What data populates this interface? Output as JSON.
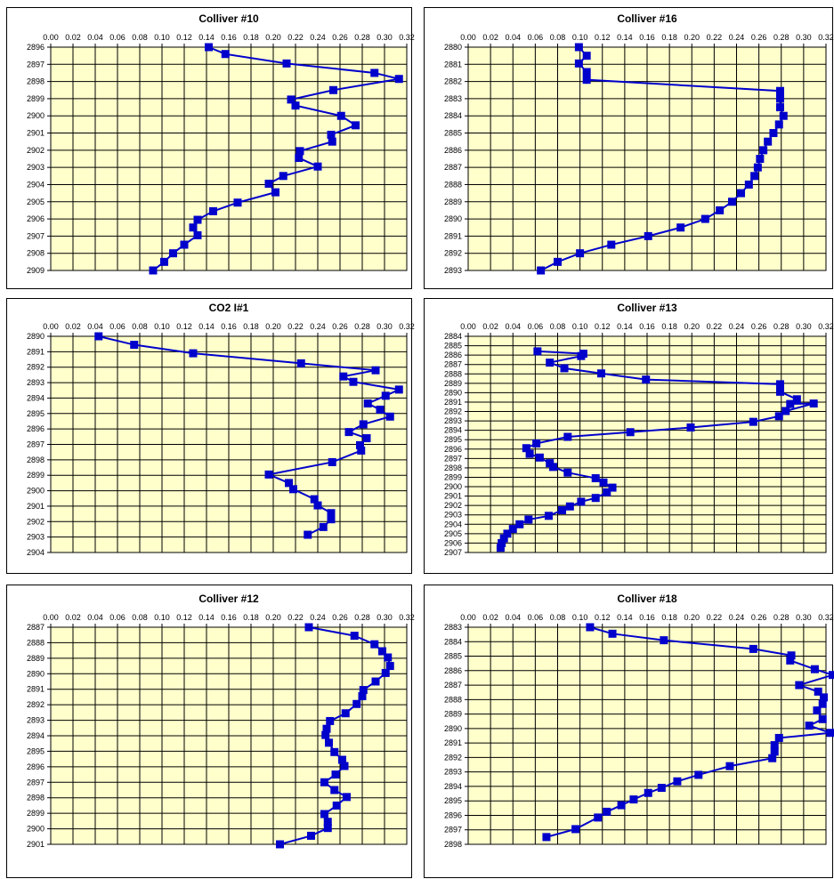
{
  "colors": {
    "plot_bg": "#ffffcc",
    "grid": "#000000",
    "series": "#0000cc",
    "panel_border": "#000000"
  },
  "chart_data": [
    {
      "type": "line",
      "title": "Colliver #10",
      "xlim": [
        0,
        0.32
      ],
      "xticks": [
        "0.00",
        "0.02",
        "0.04",
        "0.06",
        "0.08",
        "0.10",
        "0.12",
        "0.14",
        "0.16",
        "0.18",
        "0.20",
        "0.22",
        "0.24",
        "0.26",
        "0.28",
        "0.30",
        "0.32"
      ],
      "yticks": [
        "2896",
        "2897",
        "2898",
        "2899",
        "2900",
        "2901",
        "2902",
        "2903",
        "2904",
        "2905",
        "2906",
        "2907",
        "2908",
        "2909"
      ],
      "ylim": [
        2896,
        2909
      ],
      "y_reversed": true,
      "x_axis_position": "top",
      "grid": true,
      "series": [
        {
          "marker": "square",
          "x": [
            0.142,
            0.157,
            0.212,
            0.291,
            0.313,
            0.254,
            0.216,
            0.22,
            0.261,
            0.274,
            0.252,
            0.253,
            0.224,
            0.223,
            0.24,
            0.209,
            0.196,
            0.202,
            0.168,
            0.146,
            0.132,
            0.128,
            0.132,
            0.12,
            0.11,
            0.102,
            0.092
          ],
          "y": [
            2896.0,
            2896.4,
            2896.95,
            2897.5,
            2897.85,
            2898.5,
            2899.05,
            2899.4,
            2900.0,
            2900.55,
            2901.1,
            2901.5,
            2902.05,
            2902.45,
            2902.95,
            2903.5,
            2903.95,
            2904.45,
            2905.05,
            2905.55,
            2906.05,
            2906.5,
            2906.95,
            2907.5,
            2908.0,
            2908.5,
            2909.0
          ]
        }
      ]
    },
    {
      "type": "line",
      "title": "Colliver #16",
      "xlim": [
        0,
        0.32
      ],
      "xticks": [
        "0.00",
        "0.02",
        "0.04",
        "0.06",
        "0.08",
        "0.10",
        "0.12",
        "0.14",
        "0.16",
        "0.18",
        "0.20",
        "0.22",
        "0.24",
        "0.26",
        "0.28",
        "0.30",
        "0.32"
      ],
      "yticks": [
        "2880",
        "2881",
        "2882",
        "2883",
        "2884",
        "2885",
        "2886",
        "2887",
        "2888",
        "2889",
        "2890",
        "2891",
        "2892",
        "2893"
      ],
      "ylim": [
        2880,
        2893
      ],
      "y_reversed": true,
      "x_axis_position": "top",
      "grid": true,
      "series": [
        {
          "marker": "square",
          "x": [
            0.099,
            0.106,
            0.099,
            0.106,
            0.106,
            0.279,
            0.279,
            0.279,
            0.282,
            0.278,
            0.273,
            0.268,
            0.264,
            0.261,
            0.259,
            0.256,
            0.251,
            0.244,
            0.236,
            0.225,
            0.212,
            0.19,
            0.161,
            0.128,
            0.1,
            0.08,
            0.065
          ],
          "y": [
            2880.0,
            2880.5,
            2880.95,
            2881.45,
            2881.9,
            2882.55,
            2883.0,
            2883.5,
            2884.0,
            2884.5,
            2885.0,
            2885.5,
            2886.0,
            2886.5,
            2887.0,
            2887.5,
            2888.0,
            2888.5,
            2889.0,
            2889.5,
            2890.0,
            2890.5,
            2891.0,
            2891.5,
            2892.0,
            2892.5,
            2893.0
          ]
        }
      ]
    },
    {
      "type": "line",
      "title": "CO2 I#1",
      "xlim": [
        0,
        0.32
      ],
      "xticks": [
        "0.00",
        "0.02",
        "0.04",
        "0.06",
        "0.08",
        "0.10",
        "0.12",
        "0.14",
        "0.16",
        "0.18",
        "0.20",
        "0.22",
        "0.24",
        "0.26",
        "0.28",
        "0.30",
        "0.32"
      ],
      "yticks": [
        "2890",
        "2891",
        "2892",
        "2893",
        "2894",
        "2895",
        "2896",
        "2897",
        "2898",
        "2899",
        "2900",
        "2901",
        "2902",
        "2903",
        "2904"
      ],
      "ylim": [
        2890,
        2904
      ],
      "y_reversed": true,
      "x_axis_position": "top",
      "grid": true,
      "series": [
        {
          "marker": "square",
          "x": [
            0.043,
            0.075,
            0.128,
            0.225,
            0.292,
            0.263,
            0.272,
            0.313,
            0.301,
            0.285,
            0.296,
            0.305,
            0.281,
            0.268,
            0.284,
            0.278,
            0.279,
            0.253,
            0.196,
            0.214,
            0.218,
            0.237,
            0.24,
            0.252,
            0.252,
            0.245,
            0.231
          ],
          "y": [
            2890.0,
            2890.55,
            2891.1,
            2891.75,
            2892.2,
            2892.6,
            2892.95,
            2893.45,
            2893.85,
            2894.35,
            2894.75,
            2895.2,
            2895.7,
            2896.2,
            2896.6,
            2897.05,
            2897.4,
            2898.15,
            2898.95,
            2899.5,
            2899.9,
            2900.55,
            2900.95,
            2901.45,
            2901.85,
            2902.35,
            2902.85
          ]
        }
      ]
    },
    {
      "type": "line",
      "title": "Colliver #13",
      "xlim": [
        0,
        0.32
      ],
      "xticks": [
        "0.00",
        "0.02",
        "0.04",
        "0.06",
        "0.08",
        "0.10",
        "0.12",
        "0.14",
        "0.16",
        "0.18",
        "0.20",
        "0.22",
        "0.24",
        "0.26",
        "0.28",
        "0.30",
        "0.32"
      ],
      "yticks": [
        "2884",
        "2885",
        "2886",
        "2887",
        "2888",
        "2889",
        "2890",
        "2891",
        "2892",
        "2893",
        "2894",
        "2895",
        "2896",
        "2897",
        "2898",
        "2899",
        "2900",
        "2901",
        "2902",
        "2903",
        "2904",
        "2905",
        "2906",
        "2907"
      ],
      "ylim": [
        2884,
        2907
      ],
      "y_reversed": true,
      "x_axis_position": "top",
      "grid": true,
      "series": [
        {
          "marker": "square",
          "x": [
            0.062,
            0.103,
            0.101,
            0.073,
            0.086,
            0.119,
            0.159,
            0.279,
            0.279,
            0.294,
            0.288,
            0.309,
            0.284,
            0.278,
            0.255,
            0.199,
            0.145,
            0.089,
            0.061,
            0.052,
            0.055,
            0.064,
            0.073,
            0.076,
            0.089,
            0.114,
            0.121,
            0.129,
            0.124,
            0.114,
            0.101,
            0.091,
            0.084,
            0.072,
            0.054,
            0.046,
            0.04,
            0.035,
            0.032,
            0.03,
            0.029
          ],
          "y": [
            2885.6,
            2885.85,
            2886.1,
            2886.8,
            2887.4,
            2887.95,
            2888.6,
            2889.1,
            2889.9,
            2890.7,
            2891.2,
            2891.15,
            2891.95,
            2892.5,
            2893.1,
            2893.7,
            2894.2,
            2894.7,
            2895.4,
            2895.9,
            2896.5,
            2896.9,
            2897.5,
            2897.9,
            2898.5,
            2899.1,
            2899.55,
            2900.1,
            2900.6,
            2901.2,
            2901.6,
            2902.1,
            2902.5,
            2903.1,
            2903.5,
            2904.0,
            2904.5,
            2905.0,
            2905.5,
            2906.0,
            2906.5
          ]
        }
      ]
    },
    {
      "type": "line",
      "title": "Colliver #12",
      "xlim": [
        0,
        0.32
      ],
      "xticks": [
        "0.00",
        "0.02",
        "0.04",
        "0.06",
        "0.08",
        "0.10",
        "0.12",
        "0.14",
        "0.16",
        "0.18",
        "0.20",
        "0.22",
        "0.24",
        "0.26",
        "0.28",
        "0.30",
        "0.32"
      ],
      "yticks": [
        "2887",
        "2888",
        "2889",
        "2890",
        "2891",
        "2892",
        "2893",
        "2894",
        "2895",
        "2896",
        "2897",
        "2898",
        "2899",
        "2900",
        "2901"
      ],
      "ylim": [
        2887,
        2901
      ],
      "y_reversed": true,
      "x_axis_position": "top",
      "grid": true,
      "series": [
        {
          "marker": "square",
          "x": [
            0.232,
            0.273,
            0.291,
            0.298,
            0.303,
            0.305,
            0.301,
            0.292,
            0.281,
            0.28,
            0.275,
            0.265,
            0.251,
            0.248,
            0.247,
            0.25,
            0.255,
            0.262,
            0.264,
            0.256,
            0.246,
            0.255,
            0.266,
            0.257,
            0.246,
            0.249,
            0.249,
            0.234,
            0.206
          ],
          "y": [
            2887.0,
            2887.55,
            2888.1,
            2888.55,
            2888.95,
            2889.5,
            2889.95,
            2890.5,
            2891.05,
            2891.45,
            2891.95,
            2892.55,
            2893.05,
            2893.55,
            2893.95,
            2894.45,
            2895.05,
            2895.55,
            2895.95,
            2896.5,
            2897.0,
            2897.5,
            2897.95,
            2898.5,
            2899.05,
            2899.55,
            2899.95,
            2900.45,
            2901.0
          ]
        }
      ]
    },
    {
      "type": "line",
      "title": "Colliver #18",
      "xlim": [
        0,
        0.32
      ],
      "xticks": [
        "0.00",
        "0.02",
        "0.04",
        "0.06",
        "0.08",
        "0.10",
        "0.12",
        "0.14",
        "0.16",
        "0.18",
        "0.20",
        "0.22",
        "0.24",
        "0.26",
        "0.28",
        "0.30",
        "0.32"
      ],
      "yticks": [
        "2883",
        "2884",
        "2885",
        "2886",
        "2887",
        "2888",
        "2889",
        "2890",
        "2891",
        "2892",
        "2893",
        "2894",
        "2895",
        "2896",
        "2897",
        "2898"
      ],
      "ylim": [
        2883,
        2898
      ],
      "y_reversed": true,
      "x_axis_position": "top",
      "grid": true,
      "series": [
        {
          "marker": "square",
          "x": [
            0.109,
            0.129,
            0.175,
            0.255,
            0.289,
            0.288,
            0.31,
            0.326,
            0.296,
            0.313,
            0.318,
            0.317,
            0.312,
            0.317,
            0.305,
            0.324,
            0.278,
            0.274,
            0.274,
            0.272,
            0.234,
            0.206,
            0.187,
            0.173,
            0.161,
            0.148,
            0.137,
            0.124,
            0.116,
            0.096,
            0.07
          ],
          "y": [
            2883.0,
            2883.45,
            2883.9,
            2884.5,
            2884.95,
            2885.3,
            2885.9,
            2886.3,
            2887.0,
            2887.45,
            2887.85,
            2888.3,
            2888.75,
            2889.35,
            2889.8,
            2890.3,
            2890.65,
            2891.15,
            2891.6,
            2892.05,
            2892.6,
            2893.2,
            2893.65,
            2894.1,
            2894.45,
            2894.9,
            2895.3,
            2895.75,
            2896.15,
            2896.95,
            2897.5
          ]
        }
      ]
    }
  ]
}
